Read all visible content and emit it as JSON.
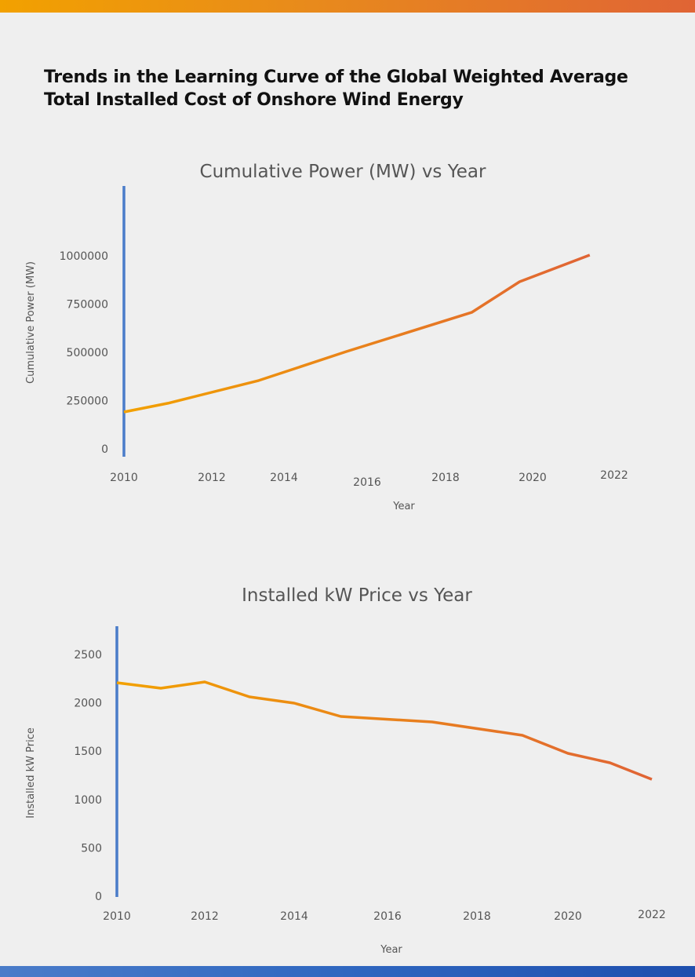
{
  "page": {
    "title": "Trends in the Learning Curve of the Global Weighted Average Total Installed Cost of Onshore Wind Energy",
    "title_line1": "Trends in the Learning Curve of the Global Weighted Average",
    "title_line2": "Total Installed Cost of Onshore Wind Energy",
    "colors": {
      "top_bar_start": "#f2a100",
      "top_bar_end": "#e06435",
      "bottom_bar_start": "#4a7cc9",
      "bottom_bar_end": "#1e4fae",
      "axis": "#3a6cc0",
      "line_start": "#f2a100",
      "line_end": "#e06435"
    }
  },
  "chart_data": [
    {
      "type": "line",
      "title": "Cumulative Power (MW) vs Year",
      "xlabel": "Year",
      "ylabel": "Cumulative Power (MW)",
      "x_ticks": [
        "2010",
        "2012",
        "2014",
        "2016",
        "2018",
        "2020",
        "2022"
      ],
      "y_ticks": [
        "0",
        "250000",
        "500000",
        "750000",
        "1000000"
      ],
      "xlim": [
        2010,
        2024
      ],
      "ylim": [
        0,
        1400000
      ],
      "grid": false,
      "series": [
        {
          "name": "Cumulative Power (MW)",
          "x": [
            2010,
            2011,
            2013.3,
            2015.5,
            2018.6,
            2019.7,
            2021.4
          ],
          "y": [
            191000,
            236000,
            354000,
            504000,
            707000,
            866000,
            1004000
          ]
        }
      ]
    },
    {
      "type": "line",
      "title": "Installed kW Price vs Year",
      "xlabel": "Year",
      "ylabel": "Installed kW Price",
      "x_ticks": [
        "2010",
        "2012",
        "2014",
        "2016",
        "2018",
        "2020",
        "2022"
      ],
      "y_ticks": [
        "0",
        "500",
        "1000",
        "1500",
        "2000",
        "2500"
      ],
      "xlim": [
        2010,
        2023
      ],
      "ylim": [
        0,
        2800
      ],
      "grid": false,
      "series": [
        {
          "name": "Installed kW Price",
          "x": [
            2010,
            2011,
            2012,
            2013,
            2014,
            2015,
            2017,
            2019,
            2020,
            2021,
            2022
          ],
          "y": [
            2208,
            2151,
            2216,
            2062,
            1997,
            1859,
            1802,
            1664,
            1477,
            1380,
            1209
          ]
        }
      ]
    }
  ]
}
